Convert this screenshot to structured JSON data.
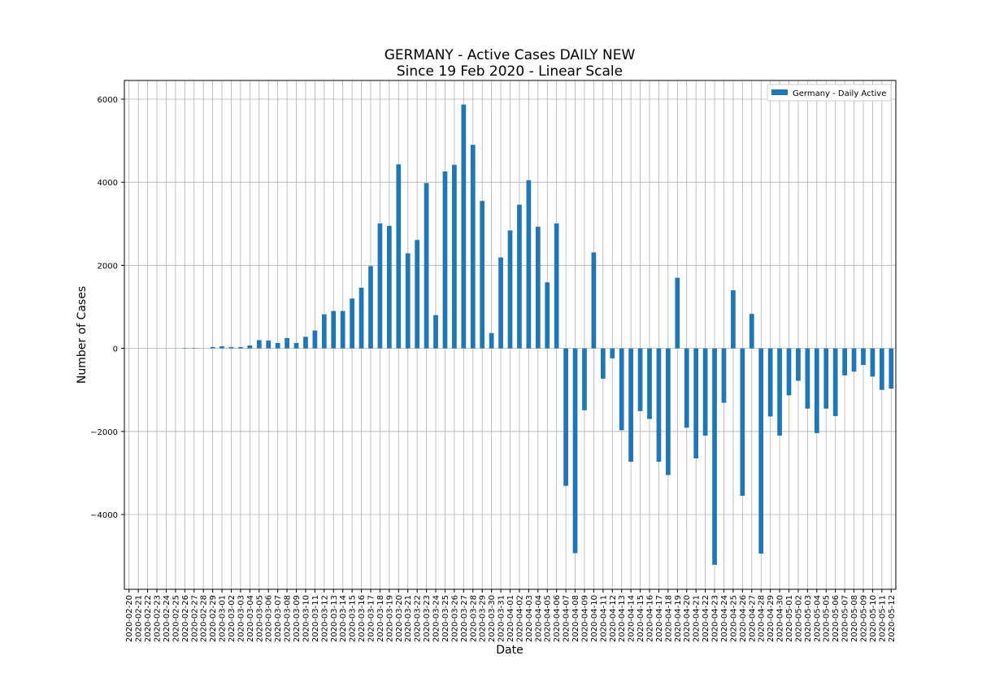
{
  "chart_data": {
    "type": "bar",
    "title": "GERMANY - Active Cases DAILY NEW",
    "subtitle": "Since 19 Feb 2020 - Linear Scale",
    "xlabel": "Date",
    "ylabel": "Number of Cases",
    "ylim": [
      -5800,
      6450
    ],
    "yticks": [
      -4000,
      -2000,
      0,
      2000,
      4000,
      6000
    ],
    "grid": true,
    "legend_position": "top-right",
    "bar_color": "#1f77b4",
    "categories": [
      "2020-02-20",
      "2020-02-21",
      "2020-02-22",
      "2020-02-23",
      "2020-02-24",
      "2020-02-25",
      "2020-02-26",
      "2020-02-27",
      "2020-02-28",
      "2020-02-29",
      "2020-03-01",
      "2020-03-02",
      "2020-03-03",
      "2020-03-04",
      "2020-03-05",
      "2020-03-06",
      "2020-03-07",
      "2020-03-08",
      "2020-03-09",
      "2020-03-10",
      "2020-03-11",
      "2020-03-12",
      "2020-03-13",
      "2020-03-14",
      "2020-03-15",
      "2020-03-16",
      "2020-03-17",
      "2020-03-18",
      "2020-03-19",
      "2020-03-20",
      "2020-03-21",
      "2020-03-22",
      "2020-03-23",
      "2020-03-24",
      "2020-03-25",
      "2020-03-26",
      "2020-03-27",
      "2020-03-28",
      "2020-03-29",
      "2020-03-30",
      "2020-03-31",
      "2020-04-01",
      "2020-04-02",
      "2020-04-03",
      "2020-04-04",
      "2020-04-05",
      "2020-04-06",
      "2020-04-07",
      "2020-04-08",
      "2020-04-09",
      "2020-04-10",
      "2020-04-11",
      "2020-04-12",
      "2020-04-13",
      "2020-04-14",
      "2020-04-15",
      "2020-04-16",
      "2020-04-17",
      "2020-04-18",
      "2020-04-19",
      "2020-04-20",
      "2020-04-21",
      "2020-04-22",
      "2020-04-23",
      "2020-04-24",
      "2020-04-25",
      "2020-04-26",
      "2020-04-27",
      "2020-04-28",
      "2020-04-29",
      "2020-04-30",
      "2020-05-01",
      "2020-05-02",
      "2020-05-03",
      "2020-05-04",
      "2020-05-05",
      "2020-05-06",
      "2020-05-07",
      "2020-05-08",
      "2020-05-09",
      "2020-05-10",
      "2020-05-11",
      "2020-05-12"
    ],
    "series": [
      {
        "name": "Germany - Daily Active",
        "values": [
          0,
          0,
          0,
          0,
          0,
          0,
          10,
          10,
          0,
          30,
          50,
          30,
          30,
          70,
          200,
          190,
          130,
          250,
          130,
          280,
          430,
          820,
          900,
          900,
          1200,
          1460,
          1980,
          3010,
          2950,
          4430,
          2290,
          2610,
          3980,
          800,
          4260,
          4420,
          5870,
          4900,
          3550,
          370,
          2190,
          2840,
          3460,
          4050,
          2930,
          1590,
          3010,
          -3310,
          -4930,
          -1490,
          2310,
          -730,
          -240,
          -1970,
          -2730,
          -1510,
          -1700,
          -2730,
          -3050,
          1700,
          -1910,
          -2650,
          -2100,
          -5210,
          -1310,
          1400,
          -3550,
          830,
          -4940,
          -1640,
          -2100,
          -1130,
          -780,
          -1450,
          -2040,
          -1450,
          -1630,
          -650,
          -560,
          -400,
          -680,
          -1000,
          -970
        ]
      }
    ]
  }
}
